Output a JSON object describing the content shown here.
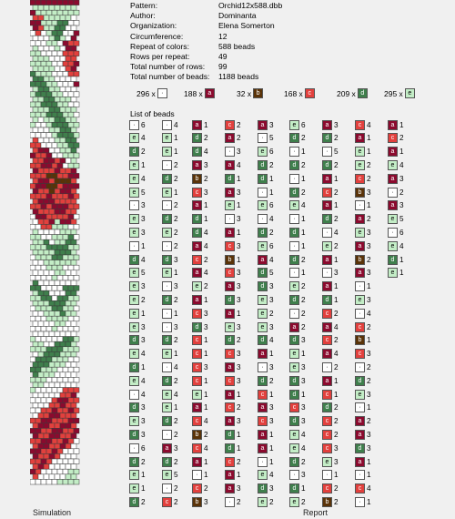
{
  "pattern_info": [
    {
      "key": "Pattern:",
      "value": "Orchid12x588.dbb"
    },
    {
      "key": "Author:",
      "value": "Dominanta"
    },
    {
      "key": "Organization:",
      "value": "Elena Somerton"
    },
    {
      "key": "Circumference:",
      "value": "12"
    },
    {
      "key": "Repeat of colors:",
      "value": "588 beads"
    },
    {
      "key": "Rows per repeat:",
      "value": "49"
    },
    {
      "key": "Total number of rows:",
      "value": "99"
    },
    {
      "key": "Total number of beads:",
      "value": "1188 beads"
    }
  ],
  "colors": {
    "white": {
      "bg": "#ffffff",
      "fg": "#000000"
    },
    "a": {
      "bg": "#8b0a2e",
      "fg": "#ffffff"
    },
    "b": {
      "bg": "#5a3308",
      "fg": "#ffffff"
    },
    "c": {
      "bg": "#e2403d",
      "fg": "#ffffff"
    },
    "d": {
      "bg": "#3f7f4c",
      "fg": "#ffffff"
    },
    "e": {
      "bg": "#c3edc6",
      "fg": "#000000"
    }
  },
  "summary": [
    {
      "count": "296 x",
      "color": "white",
      "letter": "·"
    },
    {
      "count": "188 x",
      "color": "a",
      "letter": "a"
    },
    {
      "count": "32 x",
      "color": "b",
      "letter": "b"
    },
    {
      "count": "168 x",
      "color": "c",
      "letter": "c"
    },
    {
      "count": "209 x",
      "color": "d",
      "letter": "d"
    },
    {
      "count": "295 x",
      "color": "e",
      "letter": "e"
    }
  ],
  "list_title": "List of beads",
  "bead_list": [
    [
      "·6",
      "e4",
      "d2",
      "e1",
      "e4",
      "e5",
      "·3",
      "e3",
      "e3",
      "·1",
      "d4",
      "e5",
      "e3",
      "e2",
      "e1",
      "e3",
      "d3",
      "e4",
      "d1",
      "e4",
      "·4",
      "d3",
      "e3",
      "d3",
      "·6",
      "d2",
      "e1",
      "e1",
      "d2"
    ],
    [
      "·4",
      "e1",
      "e1",
      "·2",
      "d2",
      "e1",
      "·2",
      "d2",
      "e2",
      "·2",
      "d3",
      "e1",
      "·3",
      "d2",
      "·1",
      "·3",
      "d2",
      "e1",
      "·4",
      "d2",
      "e4",
      "e1",
      "d2",
      "·2",
      "a3",
      "d2",
      "e5",
      "·2",
      "c2"
    ],
    [
      "a1",
      "d2",
      "d4",
      "a3",
      "b2",
      "c3",
      "a1",
      "d1",
      "d4",
      "a4",
      "c2",
      "a4",
      "e2",
      "a1",
      "c3",
      "d3",
      "c1",
      "c1",
      "c3",
      "c1",
      "e1",
      "a1",
      "c4",
      "b2",
      "c4",
      "a1",
      "·1",
      "c2",
      "b3"
    ],
    [
      "c2",
      "a2",
      "·3",
      "a4",
      "d1",
      "a3",
      "e1",
      "·3",
      "a1",
      "c3",
      "b1",
      "c3",
      "a3",
      "d3",
      "a1",
      "e3",
      "d2",
      "c3",
      "a3",
      "c3",
      "a1",
      "c2",
      "a3",
      "d1",
      "d1",
      "c2",
      "a1",
      "a3",
      "·2"
    ],
    [
      "a3",
      "·5",
      "e6",
      "d2",
      "d1",
      "·1",
      "e6",
      "·4",
      "d2",
      "e6",
      "a4",
      "d5",
      "d3",
      "e3",
      "e2",
      "e3",
      "d4",
      "a1",
      "·3",
      "d2",
      "c1",
      "a3",
      "c3",
      "a1",
      "a1",
      "·1",
      "e4",
      "d3",
      "e2"
    ],
    [
      "e6",
      "d2",
      "·1",
      "d2",
      "·1",
      "d2",
      "e4",
      "·1",
      "d1",
      "·1",
      "d2",
      "·1",
      "e2",
      "d2",
      "·2",
      "a2",
      "d3",
      "e1",
      "e3",
      "d3",
      "d1",
      "c3",
      "d3",
      "e4",
      "e4",
      "d2",
      "·3",
      "d1",
      "e2"
    ],
    [
      "a3",
      "d2",
      "·5",
      "d2",
      "a1",
      "c2",
      "a1",
      "d2",
      "·4",
      "e2",
      "a1",
      "·3",
      "a1",
      "d1",
      "c2",
      "a4",
      "c2",
      "a4",
      "·2",
      "a1",
      "c1",
      "d2",
      "c2",
      "c2",
      "c3",
      "e3",
      "·1",
      "c2",
      "b2"
    ],
    [
      "c4",
      "a1",
      "e1",
      "e2",
      "c2",
      "b3",
      "·1",
      "a2",
      "e3",
      "a3",
      "b2",
      "a3",
      "·1",
      "e3",
      "·4",
      "c2",
      "b1",
      "c3",
      "·2",
      "d2",
      "e3",
      "·1",
      "a2",
      "a3",
      "d3",
      "a1",
      "·1",
      "c4",
      "·1"
    ],
    [
      "a1",
      "c2",
      "a1",
      "e4",
      "a3",
      "·2",
      "a3",
      "e5",
      "·6",
      "e4",
      "d1",
      "e1",
      "",
      "",
      "",
      "",
      "",
      "",
      "",
      "",
      "",
      "",
      "",
      "",
      "",
      "",
      "",
      "",
      ""
    ]
  ],
  "sim_colors": {
    "W": "#ffffff",
    "E": "#c3edc6",
    "D": "#3f7f4c",
    "A": "#8b0a2e",
    "C": "#e2403d",
    "B": "#5a3308"
  },
  "sim_rows": [
    "AAAAAAAAA",
    "EEEEEEEEE",
    "AEEEEEEEE",
    "CCEEEEEWW",
    "AAEEEDDWW",
    "ACEEDDWWW",
    "WCWEDDWWA",
    "WWWEDEWAC",
    "WWWEEWACC",
    "EWWWEWAAC",
    "EEWWWWCCC",
    "EEEWWWCCC",
    "EEEEWWCCA",
    "EEEEWWCAC",
    "DEEEWWWCC",
    "DDEEWWWWA",
    "DDDEEWWWA",
    "EDDEEWWWW",
    "EDDDEEWWW",
    "EEDDEEEWW",
    "EEDDDEEWW",
    "EEEDDEEEW",
    "EEEDDDEEW",
    "EWEEDDEEE",
    "EWWEDDDEE",
    "WWWEEDDEE",
    "WWWWEDDDE",
    "CWWWEEDDE",
    "CCWWWEEDD",
    "CAAWWEEDE",
    "ACCAWWEEE",
    "CCAACAWEE",
    "CCAACAWEE",
    "ACCCACCAW",
    "CCCBBCCAA",
    "CAACBBBCC",
    "CAABBCAAA",
    "ACCBCAACC",
    "CCCACCCAC",
    "CAAACCCCC",
    "CCACAAACC",
    "ACCCAACCA",
    "WAACCCCAW",
    "WCCAEAACW",
    "WWCCEEEWW",
    "EWWWWEEEE",
    "EEWWEEEDW",
    "EEDWEEDDW",
    "EEEDDDDEE",
    "EEEEDDDEE",
    "WEEEDDEEE",
    "WWEEEEEEW",
    "WWWEEEWWW",
    "WWWWEEWWW",
    "WWWWEWWWW",
    "DWWWWWWWD",
    "DDWWWWDDD",
    "EDDWWWDDE",
    "EEDDWDDEE",
    "EEEDDDEEE",
    "WEEEDDEEW",
    "WWEEEDEEW",
    "WWWEEEEWW",
    "WWWWEEWWW",
    "WWWWEWWWW",
    "WWWWWWWWD",
    "EWWWWWDDE",
    "EEWWDDDEE",
    "EEEDDDEEE",
    "WEDDDEEEW",
    "WDDDEEEWW",
    "DDDEEEWWW",
    "DDEEEWWWW",
    "DEEEWWWWW",
    "EEEWWWWWW",
    "EEWWWWWWC",
    "EWWWWWCCC",
    "WWWWWCCAC",
    "WWWWCAACC",
    "WWWCCACCA",
    "WWCCACCAC",
    "WCCAACCCC",
    "CCAACCCAA",
    "CAACCAACC",
    "AACCAACCA",
    "ACCAACCAC",
    "CCAACCACW",
    "CAACCACWW",
    "AACCACWWW",
    "ACCACWWWW",
    "CCACWWWWW",
    "CACWWWWWE",
    "ACWWWWWEE",
    "CWWWWWEEE",
    "WWWWWEEEE"
  ]
}
